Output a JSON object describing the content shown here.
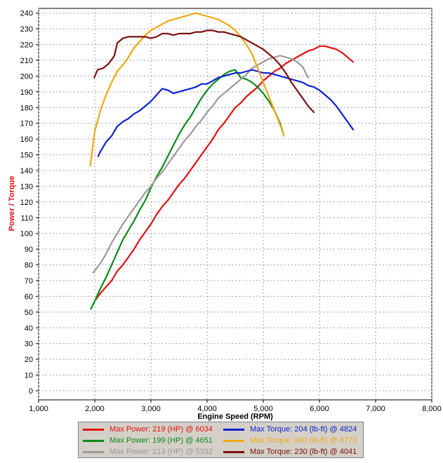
{
  "chart_data": {
    "type": "line",
    "title": "",
    "xlabel": "Engine Speed (RPM)",
    "ylabel": "Power / Torque",
    "xlim": [
      1000,
      8000
    ],
    "ylim": [
      0,
      240
    ],
    "x_ticks": [
      "1,000",
      "2,000",
      "3,000",
      "4,000",
      "5,000",
      "6,000",
      "7,000",
      "8,000"
    ],
    "x_tick_values": [
      1000,
      2000,
      3000,
      4000,
      5000,
      6000,
      7000,
      8000
    ],
    "y_ticks": [
      "0",
      "10",
      "20",
      "30",
      "40",
      "50",
      "60",
      "70",
      "80",
      "90",
      "100",
      "110",
      "120",
      "130",
      "140",
      "150",
      "160",
      "170",
      "180",
      "190",
      "200",
      "210",
      "220",
      "230",
      "240"
    ],
    "y_tick_values": [
      0,
      10,
      20,
      30,
      40,
      50,
      60,
      70,
      80,
      90,
      100,
      110,
      120,
      130,
      140,
      150,
      160,
      170,
      180,
      190,
      200,
      210,
      220,
      230,
      240
    ],
    "grid": true,
    "legend_position": "bottom",
    "series": [
      {
        "name": "Max Power: 219 (HP) @ 6034",
        "color": "#e01010",
        "x": [
          2020,
          2100,
          2200,
          2300,
          2400,
          2500,
          2600,
          2700,
          2800,
          2900,
          3000,
          3100,
          3200,
          3300,
          3400,
          3500,
          3600,
          3700,
          3800,
          3900,
          4000,
          4100,
          4200,
          4300,
          4400,
          4500,
          4600,
          4700,
          4800,
          4900,
          5000,
          5100,
          5200,
          5300,
          5400,
          5500,
          5600,
          5700,
          5800,
          5900,
          6000,
          6100,
          6200,
          6300,
          6400,
          6500,
          6600
        ],
        "y": [
          58,
          62,
          66,
          70,
          76,
          80,
          85,
          90,
          96,
          101,
          106,
          112,
          117,
          121,
          126,
          131,
          135,
          140,
          145,
          150,
          155,
          160,
          166,
          170,
          175,
          180,
          183,
          187,
          190,
          193,
          197,
          200,
          203,
          205,
          208,
          210,
          212,
          214,
          216,
          217,
          219,
          219,
          218,
          217,
          215,
          212,
          209
        ]
      },
      {
        "name": "Max Power: 199 (HP) @ 4651",
        "color": "#0a8a1a",
        "x": [
          1930,
          2000,
          2100,
          2200,
          2300,
          2400,
          2500,
          2600,
          2700,
          2800,
          2900,
          3000,
          3100,
          3200,
          3300,
          3400,
          3500,
          3600,
          3700,
          3800,
          3900,
          4000,
          4100,
          4200,
          4300,
          4400,
          4500,
          4600,
          4700,
          4800,
          4900,
          5000,
          5100,
          5200,
          5300,
          5350
        ],
        "y": [
          52,
          57,
          65,
          72,
          80,
          88,
          96,
          102,
          108,
          115,
          121,
          129,
          136,
          142,
          149,
          156,
          163,
          169,
          174,
          180,
          186,
          191,
          195,
          198,
          201,
          203,
          204,
          199,
          198,
          196,
          193,
          189,
          184,
          178,
          170,
          164
        ]
      },
      {
        "name": "Max Power: 213 (HP) @ 5332",
        "color": "#9a9a9a",
        "x": [
          1970,
          2100,
          2200,
          2300,
          2400,
          2500,
          2600,
          2700,
          2800,
          2900,
          3000,
          3100,
          3200,
          3300,
          3400,
          3500,
          3600,
          3700,
          3800,
          3900,
          4000,
          4100,
          4200,
          4300,
          4400,
          4500,
          4600,
          4700,
          4800,
          4900,
          5000,
          5100,
          5200,
          5300,
          5400,
          5500,
          5600,
          5700,
          5800
        ],
        "y": [
          75,
          81,
          87,
          94,
          100,
          106,
          111,
          116,
          121,
          126,
          130,
          135,
          139,
          144,
          149,
          154,
          159,
          163,
          168,
          172,
          177,
          181,
          186,
          189,
          192,
          195,
          198,
          201,
          205,
          207,
          209,
          211,
          212,
          213,
          212,
          211,
          209,
          206,
          199
        ]
      },
      {
        "name": "Max Torque: 204 (lb-ft) @ 4824",
        "color": "#1020d0",
        "x": [
          2060,
          2100,
          2200,
          2300,
          2400,
          2500,
          2600,
          2700,
          2800,
          2900,
          3000,
          3100,
          3200,
          3300,
          3400,
          3500,
          3600,
          3700,
          3800,
          3900,
          4000,
          4100,
          4200,
          4300,
          4400,
          4500,
          4600,
          4700,
          4800,
          4900,
          5000,
          5100,
          5200,
          5300,
          5400,
          5500,
          5600,
          5700,
          5800,
          5900,
          6000,
          6100,
          6200,
          6300,
          6400,
          6500,
          6600
        ],
        "y": [
          149,
          152,
          158,
          162,
          168,
          171,
          173,
          176,
          178,
          181,
          184,
          188,
          192,
          191,
          189,
          190,
          191,
          192,
          193,
          195,
          195,
          197,
          199,
          200,
          201,
          202,
          202,
          203,
          204,
          203,
          202,
          202,
          201,
          200,
          199,
          198,
          197,
          196,
          194,
          193,
          191,
          188,
          185,
          181,
          176,
          171,
          166
        ]
      },
      {
        "name": "Max Torque: 240 (lb-ft) @ 3773",
        "color": "#f0a810",
        "x": [
          1920,
          2000,
          2100,
          2200,
          2300,
          2400,
          2500,
          2600,
          2700,
          2800,
          2900,
          3000,
          3100,
          3200,
          3300,
          3400,
          3500,
          3600,
          3700,
          3800,
          3900,
          4000,
          4100,
          4200,
          4300,
          4400,
          4500,
          4600,
          4700,
          4800,
          4900,
          5000,
          5100,
          5200,
          5300,
          5370
        ],
        "y": [
          143,
          165,
          178,
          188,
          196,
          203,
          207,
          212,
          218,
          222,
          226,
          229,
          231,
          233,
          235,
          236,
          237,
          238,
          239,
          240,
          239,
          238,
          237,
          236,
          234,
          232,
          229,
          225,
          220,
          214,
          205,
          196,
          187,
          178,
          169,
          162
        ]
      },
      {
        "name": "Max Torque: 230 (lb-ft) @ 4041",
        "color": "#7a1010",
        "x": [
          1990,
          2050,
          2150,
          2250,
          2350,
          2400,
          2500,
          2600,
          2700,
          2800,
          2900,
          3000,
          3100,
          3200,
          3300,
          3400,
          3500,
          3600,
          3700,
          3800,
          3900,
          4000,
          4100,
          4200,
          4300,
          4400,
          4500,
          4600,
          4700,
          4800,
          4900,
          5000,
          5100,
          5200,
          5300,
          5400,
          5500,
          5600,
          5700,
          5800,
          5900
        ],
        "y": [
          199,
          204,
          205,
          208,
          213,
          221,
          224,
          225,
          225,
          225,
          225,
          224,
          225,
          227,
          227,
          226,
          227,
          227,
          227,
          228,
          228,
          229,
          229,
          228,
          228,
          227,
          226,
          225,
          223,
          221,
          219,
          217,
          214,
          211,
          207,
          202,
          196,
          191,
          186,
          181,
          177
        ]
      }
    ]
  }
}
